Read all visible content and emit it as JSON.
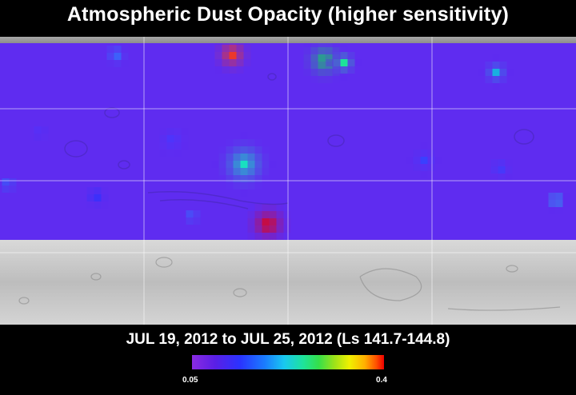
{
  "title": "Atmospheric Dust Opacity (higher sensitivity)",
  "date_range": "JUL 19, 2012 to JUL 25, 2012 (Ls 141.7-144.8)",
  "colorbar": {
    "min_label": "0.05",
    "max_label": "0.4",
    "colors": [
      "#8a2be2",
      "#2a33ff",
      "#19c8f0",
      "#35e04a",
      "#f0f000",
      "#ff5000",
      "#ee0000"
    ]
  },
  "map": {
    "base_color": "#5f2cf0",
    "polar_color": "#cfcfcf",
    "grid_lines": "on",
    "dust_scale": {
      "min": 0.05,
      "max": 0.4
    }
  }
}
